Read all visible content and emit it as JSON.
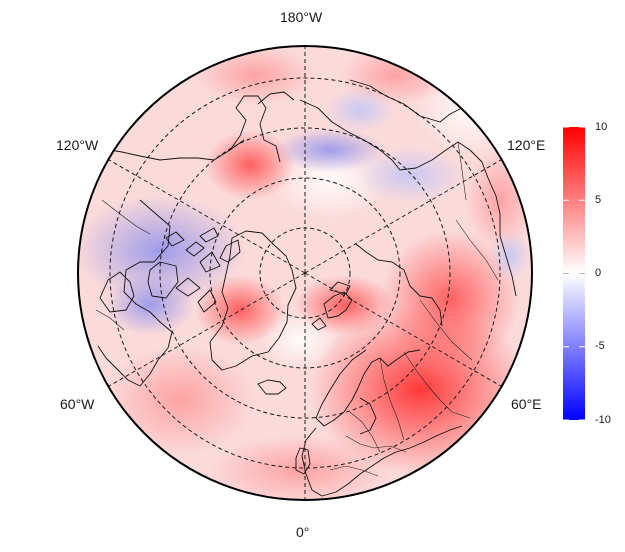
{
  "map": {
    "projection": "north polar stereographic",
    "longitude_labels": {
      "top": "180°W",
      "upper_left": "120°W",
      "upper_right": "120°E",
      "lower_left": "60°W",
      "lower_right": "60°E",
      "bottom": "0°"
    },
    "graticule": "dashed",
    "coastlines": true,
    "country_borders": true
  },
  "colorbar": {
    "min": -10,
    "max": 10,
    "ticks": [
      "10",
      "5",
      "0",
      "-5",
      "-10"
    ],
    "colors": {
      "low": "#0000ff",
      "mid": "#ffffff",
      "high": "#ff0000"
    }
  }
}
